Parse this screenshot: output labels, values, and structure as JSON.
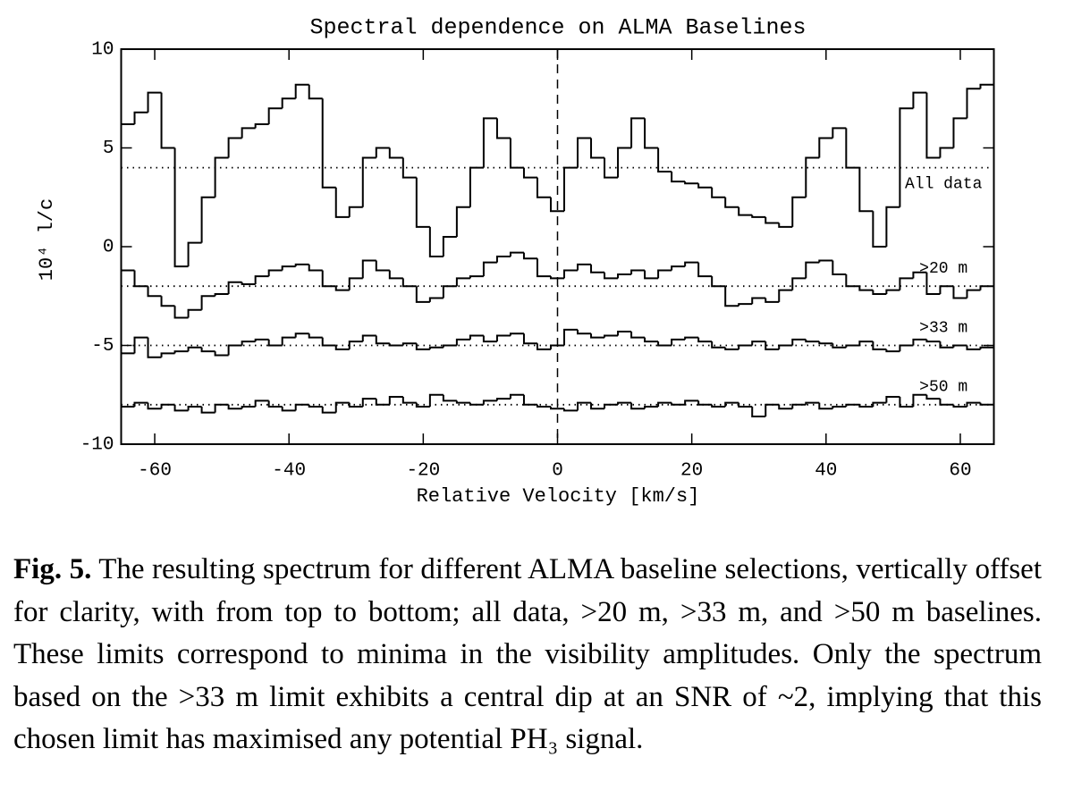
{
  "chart_data": {
    "type": "step",
    "title": "Spectral dependence on ALMA Baselines",
    "xlabel": "Relative Velocity [km/s]",
    "ylabel": "10⁴ l/c",
    "xlim": [
      -65,
      65
    ],
    "ylim": [
      -10,
      10
    ],
    "xticks": [
      -60,
      -40,
      -20,
      0,
      20,
      40,
      60
    ],
    "yticks": [
      -10,
      -5,
      0,
      5,
      10
    ],
    "vline": 0,
    "x": [
      -64,
      -62,
      -60,
      -58,
      -56,
      -54,
      -52,
      -50,
      -48,
      -46,
      -44,
      -42,
      -40,
      -38,
      -36,
      -34,
      -32,
      -30,
      -28,
      -26,
      -24,
      -22,
      -20,
      -18,
      -16,
      -14,
      -12,
      -10,
      -8,
      -6,
      -4,
      -2,
      0,
      2,
      4,
      6,
      8,
      10,
      12,
      14,
      16,
      18,
      20,
      22,
      24,
      26,
      28,
      30,
      32,
      34,
      36,
      38,
      40,
      42,
      44,
      46,
      48,
      50,
      52,
      54,
      56,
      58,
      60,
      62,
      64
    ],
    "series": [
      {
        "name": "All data",
        "color": "#000000",
        "offset": 4,
        "values": [
          6.2,
          6.8,
          7.8,
          5,
          -1.0,
          0.2,
          2.5,
          4.5,
          5.5,
          6.0,
          6.2,
          7,
          7.5,
          8.2,
          7.5,
          3,
          1.5,
          2,
          4.5,
          5,
          4.5,
          3.5,
          1,
          -0.5,
          0.5,
          2,
          4,
          6.5,
          5.5,
          4,
          3.5,
          2.5,
          1.8,
          4,
          5.5,
          4.5,
          3.5,
          5,
          6.5,
          5,
          3.8,
          3.3,
          3.2,
          3.0,
          2.5,
          2,
          1.6,
          1.5,
          1.2,
          1.0,
          2.5,
          4.5,
          5.5,
          6.0,
          4,
          1.8,
          0,
          2,
          7,
          7.8,
          4.5,
          5,
          6.5,
          8,
          8.2
        ]
      },
      {
        "name": ">20 m",
        "color": "#000000",
        "offset": -2,
        "values": [
          -1.2,
          -2,
          -2.5,
          -3,
          -3.6,
          -3.2,
          -2.5,
          -2.4,
          -1.8,
          -1.9,
          -1.5,
          -1.2,
          -1.0,
          -0.9,
          -1.2,
          -2,
          -2.2,
          -1.6,
          -0.7,
          -1.2,
          -1.6,
          -2.0,
          -2.8,
          -2.6,
          -2.0,
          -1.6,
          -1.5,
          -0.8,
          -0.5,
          -0.3,
          -0.6,
          -1.5,
          -1.6,
          -1.2,
          -0.9,
          -1.3,
          -1.6,
          -1.4,
          -1.2,
          -1.6,
          -1.2,
          -1.0,
          -0.8,
          -1.5,
          -2.0,
          -3.0,
          -2.9,
          -2.6,
          -2.8,
          -2.2,
          -1.6,
          -0.8,
          -0.7,
          -1.4,
          -2.0,
          -2.2,
          -2.4,
          -2.2,
          -1.6,
          -1.3,
          -2.4,
          -2.0,
          -2.6,
          -2.2,
          -2.0
        ]
      },
      {
        "name": ">33 m",
        "color": "#000000",
        "offset": -5,
        "values": [
          -5.4,
          -4.6,
          -5.6,
          -5.4,
          -5.3,
          -5.1,
          -5.3,
          -5.5,
          -5.0,
          -4.8,
          -4.7,
          -5.0,
          -4.6,
          -4.4,
          -4.6,
          -5.0,
          -5.2,
          -4.8,
          -4.5,
          -4.9,
          -5.0,
          -4.9,
          -5.2,
          -5.1,
          -5.0,
          -4.7,
          -4.5,
          -4.8,
          -4.5,
          -4.4,
          -4.9,
          -5.2,
          -5.0,
          -4.2,
          -4.4,
          -4.6,
          -4.5,
          -4.3,
          -4.6,
          -4.8,
          -5.0,
          -4.7,
          -4.6,
          -4.8,
          -5.1,
          -5.2,
          -5.0,
          -4.8,
          -5.2,
          -5.0,
          -4.7,
          -4.8,
          -4.9,
          -5.1,
          -5.0,
          -4.8,
          -5.2,
          -5.3,
          -5.0,
          -4.7,
          -4.8,
          -5.1,
          -5.0,
          -5.2,
          -5.1
        ]
      },
      {
        "name": ">50 m",
        "color": "#000000",
        "offset": -8,
        "values": [
          -8.1,
          -7.9,
          -8.2,
          -8.0,
          -8.3,
          -8.1,
          -8.4,
          -8.0,
          -8.2,
          -8.1,
          -7.8,
          -8.1,
          -8.3,
          -8.0,
          -8.1,
          -8.4,
          -7.9,
          -8.1,
          -7.7,
          -8.0,
          -7.6,
          -7.9,
          -8.1,
          -7.5,
          -7.8,
          -7.9,
          -8.0,
          -7.8,
          -7.7,
          -7.5,
          -8.0,
          -8.1,
          -8.2,
          -8.3,
          -7.9,
          -8.2,
          -8.0,
          -7.9,
          -8.2,
          -8.1,
          -7.9,
          -8.0,
          -7.8,
          -8.0,
          -8.1,
          -7.9,
          -8.1,
          -8.6,
          -8.0,
          -8.2,
          -8.0,
          -7.9,
          -8.2,
          -8.1,
          -8.0,
          -8.1,
          -7.9,
          -7.6,
          -8.1,
          -7.5,
          -7.7,
          -8.0,
          -8.1,
          -7.9,
          -8.0
        ]
      }
    ]
  },
  "caption": {
    "label": "Fig. 5.",
    "text": " The resulting spectrum for different ALMA baseline selections, vertically offset for clarity, with from top to bottom; all data, >20 m, >33 m, and >50 m baselines. These limits correspond to minima in the visibility amplitudes. Only the spectrum based on the >33 m limit exhibits a central dip at an SNR of ~2, implying that this chosen limit has maximised any potential PH₃ signal."
  }
}
